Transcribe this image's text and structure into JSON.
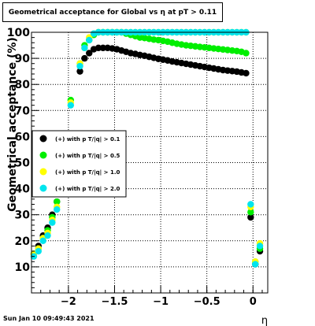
{
  "chart_data": {
    "type": "scatter",
    "title": "Geometrical acceptance for Global vs  η at pT > 0.11",
    "xlabel": "η",
    "ylabel": "Geometrical acceptance (%)",
    "xlim": [
      -2.4,
      0.16
    ],
    "ylim": [
      0,
      100
    ],
    "xticks": [
      -2,
      -1.5,
      -1,
      -0.5,
      0
    ],
    "xtick_labels": [
      "−2",
      "−1.5",
      "−1",
      "−0.5",
      "0"
    ],
    "yticks": [
      10,
      20,
      30,
      40,
      50,
      60,
      70,
      80,
      90,
      100
    ],
    "grid": true,
    "legend_position": "left-middle",
    "series": [
      {
        "name": "(+) with p T/|q| > 0.1",
        "color": "#000000",
        "x": [
          -2.375,
          -2.325,
          -2.275,
          -2.225,
          -2.175,
          -2.125,
          -1.875,
          -1.825,
          -1.775,
          -1.725,
          -1.675,
          -1.625,
          -1.575,
          -1.525,
          -1.475,
          -1.425,
          -1.375,
          -1.325,
          -1.275,
          -1.225,
          -1.175,
          -1.125,
          -1.075,
          -1.025,
          -0.975,
          -0.925,
          -0.875,
          -0.825,
          -0.775,
          -0.725,
          -0.675,
          -0.625,
          -0.575,
          -0.525,
          -0.475,
          -0.425,
          -0.375,
          -0.325,
          -0.275,
          -0.225,
          -0.175,
          -0.125,
          -0.075,
          -0.025,
          0.025,
          0.075
        ],
        "y": [
          15,
          18,
          22,
          25,
          30,
          35,
          85,
          90,
          92,
          93.5,
          94,
          94,
          94,
          93.8,
          93.5,
          93,
          92.5,
          92,
          91.7,
          91.3,
          91,
          90.6,
          90.2,
          89.8,
          89.5,
          89.2,
          88.8,
          88.5,
          88.2,
          87.9,
          87.6,
          87.3,
          87,
          86.7,
          86.4,
          86.1,
          85.8,
          85.5,
          85.3,
          85.1,
          84.9,
          84.6,
          84.3,
          29,
          11,
          16
        ]
      },
      {
        "name": "(+) with p T/|q| > 0.5",
        "color": "#00ee00",
        "x": [
          -2.375,
          -2.325,
          -2.275,
          -2.225,
          -2.175,
          -2.125,
          -1.975,
          -1.875,
          -1.825,
          -1.775,
          -1.725,
          -1.675,
          -1.625,
          -1.575,
          -1.525,
          -1.475,
          -1.425,
          -1.375,
          -1.325,
          -1.275,
          -1.225,
          -1.175,
          -1.125,
          -1.075,
          -1.025,
          -0.975,
          -0.925,
          -0.875,
          -0.825,
          -0.775,
          -0.725,
          -0.675,
          -0.625,
          -0.575,
          -0.525,
          -0.475,
          -0.425,
          -0.375,
          -0.325,
          -0.275,
          -0.225,
          -0.175,
          -0.125,
          -0.075,
          -0.025,
          0.025,
          0.075
        ],
        "y": [
          15,
          17,
          21,
          24,
          29,
          35,
          74,
          88,
          95,
          97,
          99,
          100,
          100,
          100,
          100,
          100,
          100,
          99.5,
          99,
          98.5,
          98,
          97.8,
          97.5,
          97.2,
          97,
          96.7,
          96.4,
          96,
          95.6,
          95.3,
          95,
          94.8,
          94.6,
          94.4,
          94.2,
          94,
          93.8,
          93.6,
          93.4,
          93.2,
          93,
          92.8,
          92.5,
          92,
          31,
          12,
          17
        ]
      },
      {
        "name": "(+) with p T/|q| > 1.0",
        "color": "#ffff00",
        "x": [
          -2.375,
          -2.325,
          -2.275,
          -2.225,
          -2.175,
          -2.125,
          -1.975,
          -1.875,
          -1.825,
          -1.775,
          -1.725,
          -1.675,
          -1.625,
          -1.575,
          -1.525,
          -1.475,
          -1.425,
          -1.375,
          -1.325,
          -1.275,
          -1.225,
          -1.175,
          -1.125,
          -1.075,
          -1.025,
          -0.975,
          -0.925,
          -0.875,
          -0.825,
          -0.775,
          -0.725,
          -0.675,
          -0.625,
          -0.575,
          -0.525,
          -0.475,
          -0.425,
          -0.375,
          -0.325,
          -0.275,
          -0.225,
          -0.175,
          -0.125,
          -0.075,
          -0.025,
          0.025,
          0.075
        ],
        "y": [
          15,
          17,
          21,
          23,
          28,
          33,
          73,
          88,
          94,
          98,
          99.5,
          100,
          100,
          100,
          100,
          100,
          100,
          100,
          100,
          100,
          100,
          100,
          100,
          100,
          100,
          100,
          100,
          100,
          100,
          100,
          100,
          100,
          100,
          100,
          100,
          100,
          100,
          100,
          100,
          100,
          100,
          100,
          100,
          100,
          33,
          12,
          19
        ]
      },
      {
        "name": "(+) with p T/|q| > 2.0",
        "color": "#00e5ee",
        "x": [
          -2.375,
          -2.325,
          -2.275,
          -2.225,
          -2.175,
          -2.125,
          -1.975,
          -1.875,
          -1.825,
          -1.775,
          -1.725,
          -1.675,
          -1.625,
          -1.575,
          -1.525,
          -1.475,
          -1.425,
          -1.375,
          -1.325,
          -1.275,
          -1.225,
          -1.175,
          -1.125,
          -1.075,
          -1.025,
          -0.975,
          -0.925,
          -0.875,
          -0.825,
          -0.775,
          -0.725,
          -0.675,
          -0.625,
          -0.575,
          -0.525,
          -0.475,
          -0.425,
          -0.375,
          -0.325,
          -0.275,
          -0.225,
          -0.175,
          -0.125,
          -0.075,
          -0.025,
          0.025,
          0.075
        ],
        "y": [
          14,
          16,
          20,
          22,
          27,
          32,
          72,
          87,
          94,
          97,
          99.5,
          100,
          100,
          100,
          100,
          100,
          100,
          100,
          100,
          100,
          100,
          100,
          100,
          100,
          100,
          100,
          100,
          100,
          100,
          100,
          100,
          100,
          100,
          100,
          100,
          100,
          100,
          100,
          100,
          100,
          100,
          100,
          100,
          100,
          34,
          11,
          18
        ]
      }
    ]
  },
  "footer_date": "Sun Jan 10 09:49:43 2021"
}
